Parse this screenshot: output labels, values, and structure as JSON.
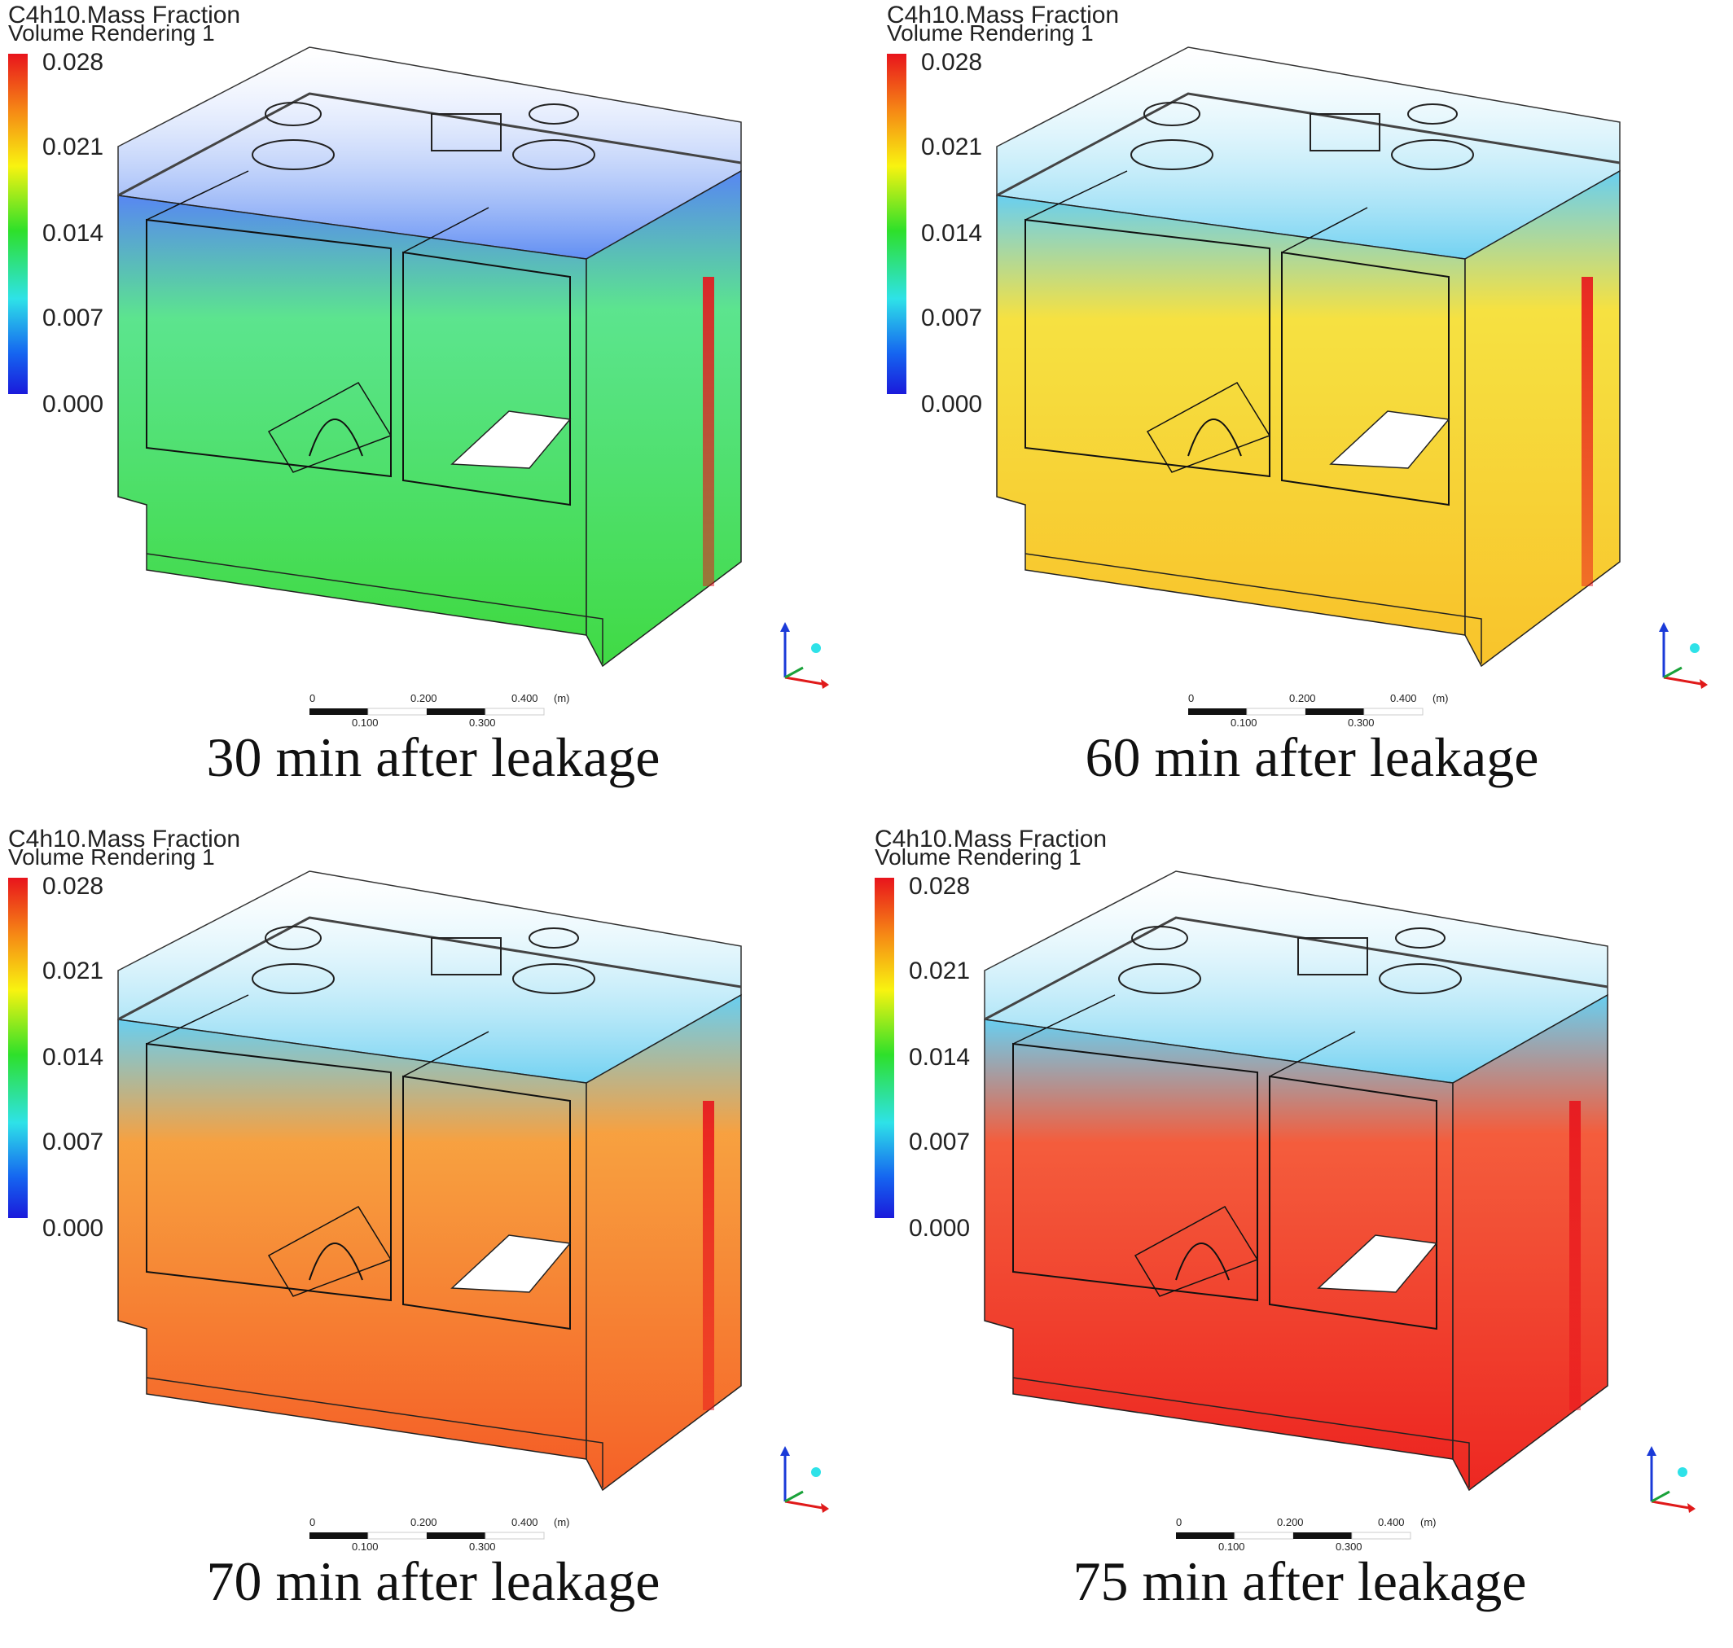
{
  "panels": [
    {
      "variable": "C4h10.Mass Fraction",
      "rendering": "Volume Rendering 1",
      "legend_ticks": [
        "0.028",
        "0.021",
        "0.014",
        "0.007",
        "0.000"
      ],
      "caption": "30 min after leakage",
      "colors": {
        "top": "#3a72f0",
        "body": "#3fe07a",
        "bottom": "#36d83a",
        "plume": "#e8141c"
      }
    },
    {
      "variable": "C4h10.Mass Fraction",
      "rendering": "Volume Rendering 1",
      "legend_ticks": [
        "0.028",
        "0.021",
        "0.014",
        "0.007",
        "0.000"
      ],
      "caption": "60 min after leakage",
      "colors": {
        "top": "#4ec6ee",
        "body": "#f4dc20",
        "bottom": "#f8c020",
        "plume": "#e8141c"
      }
    },
    {
      "variable": "C4h10.Mass Fraction",
      "rendering": "Volume Rendering 1",
      "legend_ticks": [
        "0.028",
        "0.021",
        "0.014",
        "0.007",
        "0.000"
      ],
      "caption": "70 min after leakage",
      "colors": {
        "top": "#4ec6ee",
        "body": "#f6901e",
        "bottom": "#f4581c",
        "plume": "#e8141c"
      }
    },
    {
      "variable": "C4h10.Mass Fraction",
      "rendering": "Volume Rendering 1",
      "legend_ticks": [
        "0.028",
        "0.021",
        "0.014",
        "0.007",
        "0.000"
      ],
      "caption": "75 min after leakage",
      "colors": {
        "top": "#4ec6ee",
        "body": "#f2401a",
        "bottom": "#ec1c16",
        "plume": "#e8141c"
      }
    }
  ],
  "scale_bar": {
    "top_labels": [
      "0",
      "0.200",
      "0.400",
      "(m)"
    ],
    "bottom_labels": [
      "0.100",
      "0.300"
    ]
  }
}
